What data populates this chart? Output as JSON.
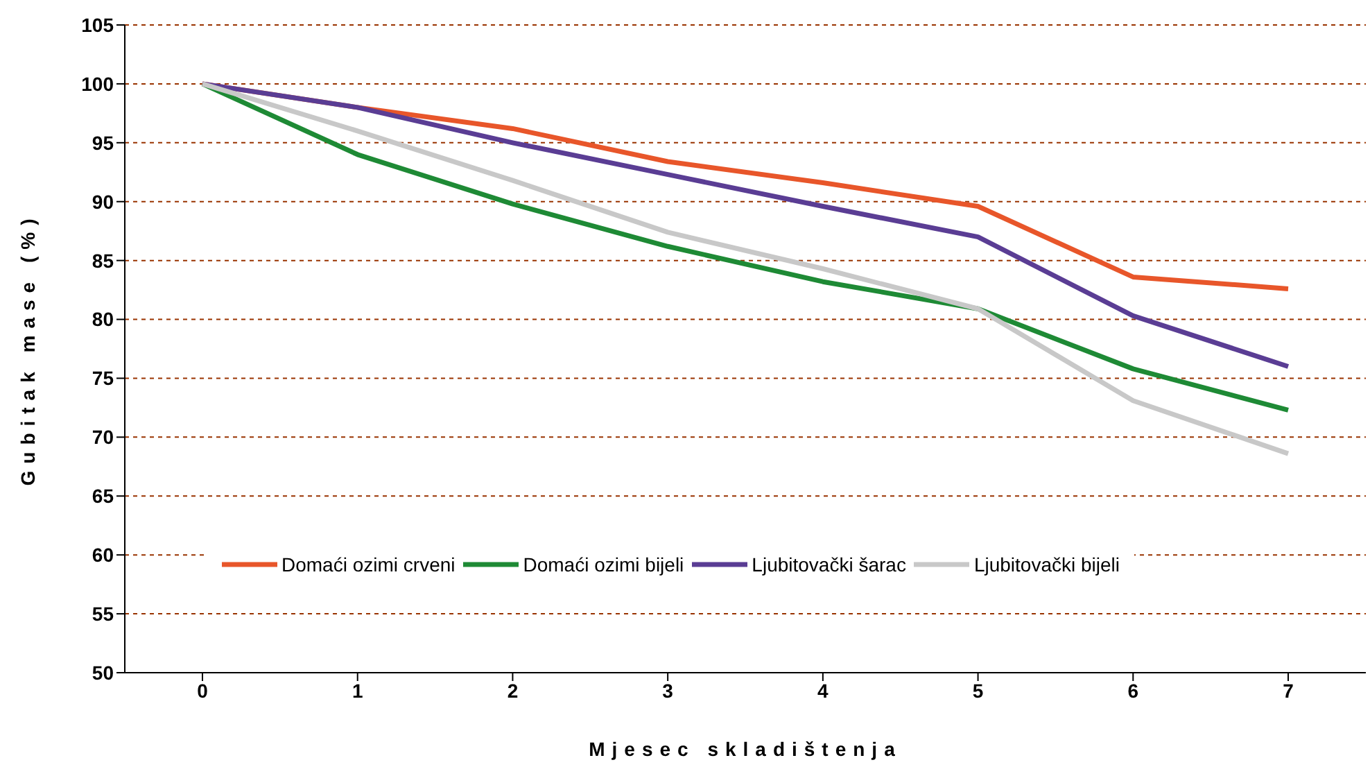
{
  "chart_data": {
    "type": "line",
    "xlabel": "Mjesec skladištenja",
    "ylabel": "Gubitak mase (%)",
    "categories": [
      "0",
      "1",
      "2",
      "3",
      "4",
      "5",
      "6",
      "7"
    ],
    "series": [
      {
        "name": "Domaći ozimi crveni",
        "color": "#e8562a",
        "values": [
          100,
          98,
          96.2,
          93.4,
          91.6,
          89.6,
          83.6,
          82.6
        ]
      },
      {
        "name": "Domaći ozimi bijeli",
        "color": "#1e8a35",
        "values": [
          100,
          94,
          89.8,
          86.2,
          83.2,
          80.9,
          75.8,
          72.3
        ]
      },
      {
        "name": "Ljubitovački šarac",
        "color": "#5a3d94",
        "values": [
          100,
          98,
          95,
          92.3,
          89.6,
          87,
          80.3,
          76
        ]
      },
      {
        "name": "Ljubitovački bijeli",
        "color": "#c8c8c8",
        "values": [
          100,
          96,
          91.8,
          87.4,
          84.3,
          80.9,
          73.1,
          68.6
        ]
      }
    ],
    "ylim": [
      50,
      105
    ],
    "yticks": [
      50,
      55,
      60,
      65,
      70,
      75,
      80,
      85,
      90,
      95,
      100,
      105
    ],
    "grid": "y",
    "legend": "bottom",
    "marker": "none",
    "line_style": "solid"
  }
}
